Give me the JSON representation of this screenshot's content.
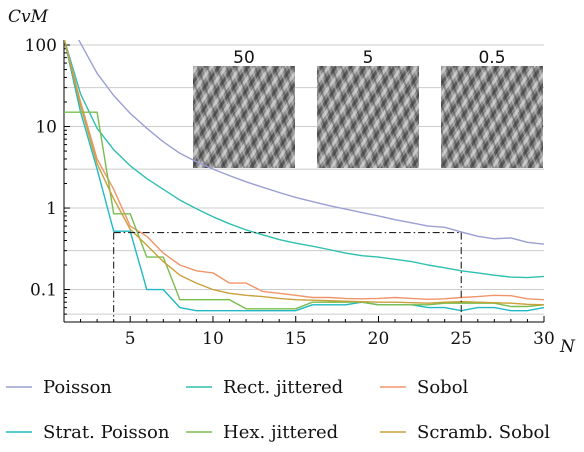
{
  "chart_data": {
    "type": "line",
    "title": "",
    "xlabel": "N",
    "ylabel": "CvM",
    "xlim": [
      1,
      30
    ],
    "ylim": [
      0.04,
      100
    ],
    "yscale": "log",
    "grid": {
      "horizontal": true,
      "vertical": false
    },
    "x_ticks": [
      5,
      10,
      15,
      20,
      25,
      30
    ],
    "y_ticks": [
      0.1,
      1,
      10,
      100
    ],
    "y_tick_labels": [
      "0.1",
      "1",
      "10",
      "100"
    ],
    "legend_position": "bottom",
    "colors": {
      "grid": "#cccccc",
      "axis": "#000000"
    },
    "series": [
      {
        "name": "Poisson",
        "color": "#9a9fd4",
        "x": [
          1,
          2,
          3,
          4,
          5,
          6,
          7,
          8,
          9,
          10,
          11,
          12,
          13,
          14,
          15,
          16,
          17,
          18,
          19,
          20,
          21,
          22,
          23,
          24,
          25,
          26,
          27,
          28,
          29,
          30
        ],
        "y": [
          250,
          105,
          45,
          24,
          14.5,
          9.5,
          6.5,
          4.7,
          3.7,
          3.0,
          2.5,
          2.1,
          1.8,
          1.55,
          1.35,
          1.2,
          1.07,
          0.97,
          0.88,
          0.8,
          0.72,
          0.66,
          0.6,
          0.58,
          0.51,
          0.45,
          0.42,
          0.43,
          0.38,
          0.36
        ]
      },
      {
        "name": "Rect. jittered",
        "color": "#2fbfb0",
        "x": [
          1,
          2,
          3,
          4,
          5,
          6,
          7,
          8,
          9,
          10,
          11,
          12,
          13,
          14,
          15,
          16,
          17,
          18,
          19,
          20,
          21,
          22,
          23,
          24,
          25,
          26,
          27,
          28,
          29,
          30
        ],
        "y": [
          120,
          25,
          9.5,
          5.2,
          3.3,
          2.3,
          1.7,
          1.25,
          0.98,
          0.78,
          0.64,
          0.54,
          0.47,
          0.41,
          0.37,
          0.34,
          0.31,
          0.28,
          0.26,
          0.25,
          0.235,
          0.22,
          0.2,
          0.185,
          0.17,
          0.16,
          0.15,
          0.142,
          0.14,
          0.145
        ]
      },
      {
        "name": "Sobol",
        "color": "#f0956a",
        "x": [
          1,
          2,
          3,
          4,
          5,
          6,
          7,
          8,
          9,
          10,
          11,
          12,
          13,
          14,
          15,
          16,
          17,
          18,
          19,
          20,
          21,
          22,
          23,
          24,
          25,
          26,
          27,
          28,
          29,
          30
        ],
        "y": [
          120,
          20,
          4,
          1.7,
          0.6,
          0.45,
          0.28,
          0.2,
          0.17,
          0.16,
          0.12,
          0.12,
          0.095,
          0.09,
          0.085,
          0.08,
          0.08,
          0.078,
          0.077,
          0.078,
          0.08,
          0.078,
          0.076,
          0.077,
          0.08,
          0.082,
          0.085,
          0.084,
          0.077,
          0.075
        ]
      },
      {
        "name": "Strat. Poisson",
        "color": "#1fb9c4",
        "x": [
          1,
          2,
          3,
          4,
          5,
          6,
          7,
          8,
          9,
          10,
          11,
          12,
          13,
          14,
          15,
          16,
          17,
          18,
          19,
          20,
          21,
          22,
          23,
          24,
          25,
          26,
          27,
          28,
          29,
          30
        ],
        "y": [
          120,
          15,
          3,
          0.52,
          0.52,
          0.1,
          0.1,
          0.06,
          0.055,
          0.055,
          0.055,
          0.055,
          0.055,
          0.055,
          0.055,
          0.065,
          0.065,
          0.065,
          0.07,
          0.065,
          0.065,
          0.065,
          0.06,
          0.06,
          0.055,
          0.06,
          0.06,
          0.055,
          0.055,
          0.06
        ]
      },
      {
        "name": "Hex. jittered",
        "color": "#79bd4f",
        "x": [
          1,
          2,
          3,
          4,
          5,
          6,
          7,
          8,
          9,
          10,
          11,
          12,
          13,
          14,
          15,
          16,
          17,
          18,
          19,
          20,
          21,
          22,
          23,
          24,
          25,
          26,
          27,
          28,
          29,
          30
        ],
        "y": [
          15,
          15,
          15,
          0.85,
          0.85,
          0.25,
          0.25,
          0.075,
          0.075,
          0.075,
          0.075,
          0.058,
          0.058,
          0.058,
          0.058,
          0.07,
          0.07,
          0.07,
          0.07,
          0.065,
          0.065,
          0.065,
          0.065,
          0.068,
          0.068,
          0.068,
          0.068,
          0.062,
          0.062,
          0.065
        ]
      },
      {
        "name": "Scramb. Sobol",
        "color": "#c9a03a",
        "x": [
          1,
          2,
          3,
          4,
          5,
          6,
          7,
          8,
          9,
          10,
          11,
          12,
          13,
          14,
          15,
          16,
          17,
          18,
          19,
          20,
          21,
          22,
          23,
          24,
          25,
          26,
          27,
          28,
          29,
          30
        ],
        "y": [
          120,
          18,
          3.5,
          1.3,
          0.55,
          0.35,
          0.22,
          0.15,
          0.12,
          0.1,
          0.09,
          0.085,
          0.082,
          0.078,
          0.075,
          0.074,
          0.073,
          0.072,
          0.071,
          0.07,
          0.07,
          0.069,
          0.068,
          0.07,
          0.071,
          0.07,
          0.069,
          0.068,
          0.066,
          0.065
        ]
      }
    ],
    "annotations": {
      "threshold_box": {
        "x0": 4,
        "x1": 25,
        "y": 0.5
      },
      "insets": [
        {
          "label": "50"
        },
        {
          "label": "5"
        },
        {
          "label": "0.5"
        }
      ]
    }
  }
}
